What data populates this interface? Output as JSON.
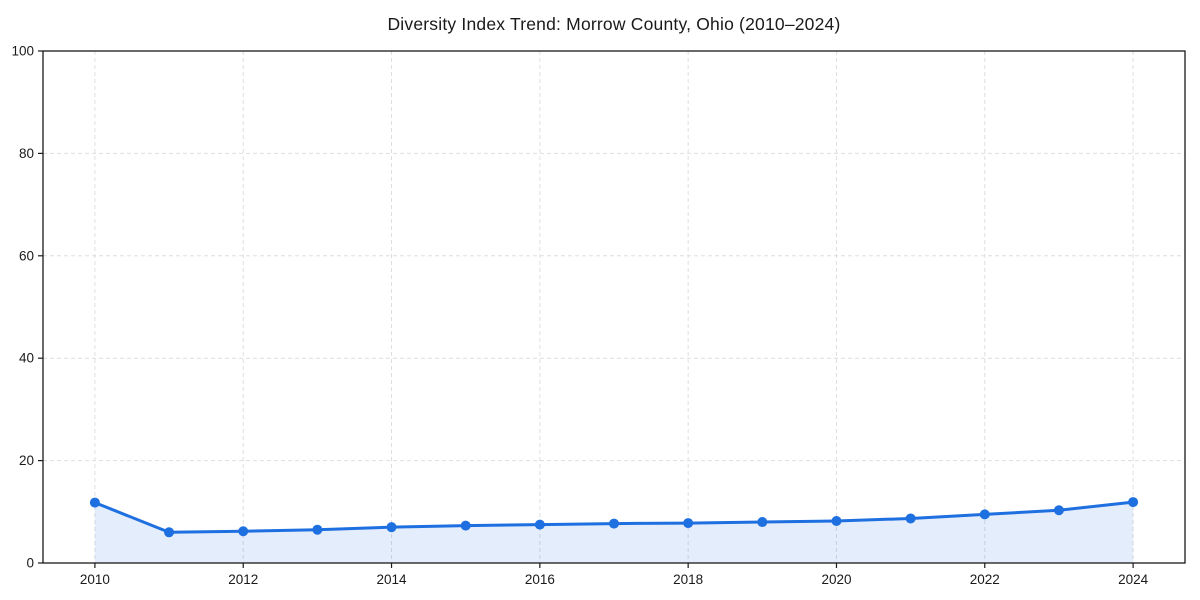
{
  "page": {
    "background": "#ffffff"
  },
  "chart_data": {
    "type": "line",
    "title": "Diversity Index Trend: Morrow County, Ohio (2010–2024)",
    "xlabel": "",
    "ylabel": "",
    "series": [
      {
        "name": "Diversity Index",
        "x": [
          2010,
          2011,
          2012,
          2013,
          2014,
          2015,
          2016,
          2017,
          2018,
          2019,
          2020,
          2021,
          2022,
          2023,
          2024
        ],
        "values": [
          11.8,
          6.0,
          6.2,
          6.5,
          7.0,
          7.3,
          7.5,
          7.7,
          7.8,
          8.0,
          8.2,
          8.7,
          9.5,
          10.3,
          11.9
        ]
      }
    ],
    "xlim": [
      2009.3,
      2024.7
    ],
    "ylim": [
      0,
      100
    ],
    "xticks": [
      2010,
      2012,
      2014,
      2016,
      2018,
      2020,
      2022,
      2024
    ],
    "yticks": [
      0,
      20,
      40,
      60,
      80,
      100
    ],
    "grid": true,
    "grid_style": "dashed",
    "legend": "none",
    "area_fill": true,
    "marker": "circle",
    "colors": {
      "line": "#1e6fe0",
      "fill": "rgba(30, 111, 224, 0.12)",
      "grid": "#dedede",
      "axis": "#1a1a1a",
      "text": "#1a1a1a",
      "background": "#ffffff"
    }
  }
}
